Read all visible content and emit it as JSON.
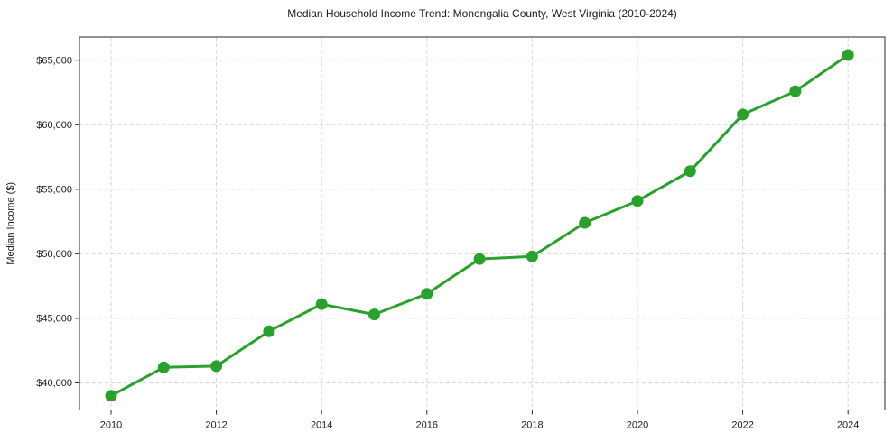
{
  "colors": {
    "background": "#ffffff",
    "line": "#2ca02c",
    "grid": "#d6d6d6",
    "spine": "#262626",
    "text": "#1a1a1a"
  },
  "chart_data": {
    "type": "line",
    "title": "Median Household Income Trend: Monongalia County, West Virginia (2010-2024)",
    "xlabel": "",
    "ylabel": "Median Income ($)",
    "x": [
      2010,
      2011,
      2012,
      2013,
      2014,
      2015,
      2016,
      2017,
      2018,
      2019,
      2020,
      2021,
      2022,
      2023,
      2024
    ],
    "series": [
      {
        "name": "Median Household Income",
        "color": "#2ca02c",
        "values": [
          39000,
          41200,
          41300,
          44000,
          46100,
          45300,
          46900,
          49600,
          49800,
          52400,
          54100,
          56400,
          60800,
          62600,
          65400
        ]
      }
    ],
    "xlim": [
      2009.4,
      2024.7
    ],
    "ylim": [
      37900,
      66800
    ],
    "x_ticks": [
      2010,
      2012,
      2014,
      2016,
      2018,
      2020,
      2022,
      2024
    ],
    "x_tick_labels": [
      "2010",
      "2012",
      "2014",
      "2016",
      "2018",
      "2020",
      "2022",
      "2024"
    ],
    "y_ticks": [
      40000,
      45000,
      50000,
      55000,
      60000,
      65000
    ],
    "y_tick_labels": [
      "$40,000",
      "$45,000",
      "$50,000",
      "$55,000",
      "$60,000",
      "$65,000"
    ],
    "grid": true,
    "grid_style": "dashed",
    "legend": "none",
    "marker": "circle",
    "marker_size": 13,
    "line_width": 3
  }
}
